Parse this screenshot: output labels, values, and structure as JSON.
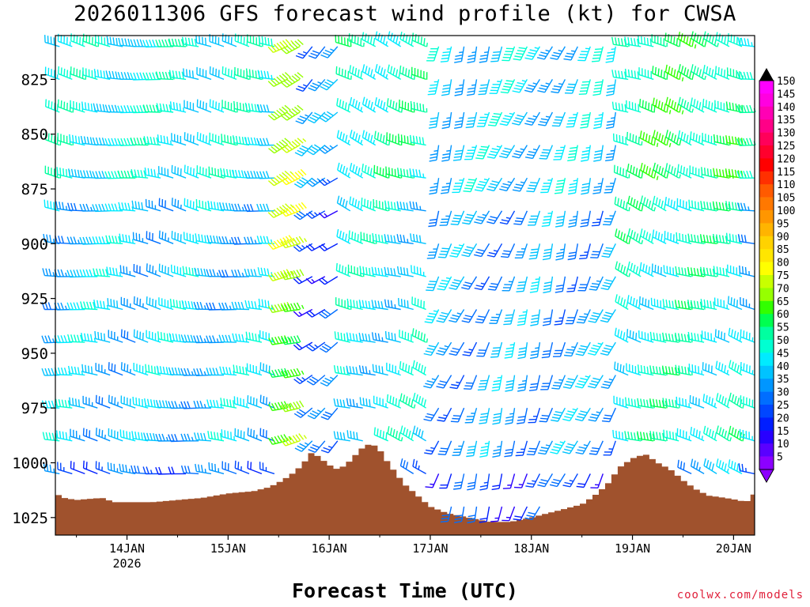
{
  "chart_data": {
    "type": "wind-barb-profile",
    "title": "2026011306 GFS forecast wind profile (kt) for CWSA",
    "xlabel": "Forecast Time (UTC)",
    "credit": "coolwx.com/models",
    "y_axis": {
      "unit": "hPa",
      "range": [
        1033,
        805
      ],
      "ticks": [
        825,
        850,
        875,
        900,
        925,
        950,
        975,
        1000,
        1025
      ],
      "levels": [
        810,
        825,
        840,
        855,
        870,
        885,
        900,
        915,
        930,
        945,
        960,
        975,
        990,
        1005,
        1020
      ]
    },
    "x_axis": {
      "unit": "hours since 2026-01-13 00Z",
      "range": [
        7,
        173
      ],
      "ticks": [
        {
          "label": "14JAN",
          "sublabel": "2026",
          "hour": 24
        },
        {
          "label": "15JAN",
          "sublabel": "",
          "hour": 48
        },
        {
          "label": "16JAN",
          "sublabel": "",
          "hour": 72
        },
        {
          "label": "17JAN",
          "sublabel": "",
          "hour": 96
        },
        {
          "label": "18JAN",
          "sublabel": "",
          "hour": 120
        },
        {
          "label": "19JAN",
          "sublabel": "",
          "hour": 144
        },
        {
          "label": "20JAN",
          "sublabel": "",
          "hour": 168
        }
      ],
      "step_hours": 3
    },
    "colorbar": {
      "labels": [
        "150",
        "145",
        "140",
        "135",
        "130",
        "125",
        "120",
        "115",
        "110",
        "105",
        "100",
        "95",
        "90",
        "85",
        "80",
        "75",
        "70",
        "65",
        "60",
        "55",
        "50",
        "45",
        "40",
        "35",
        "30",
        "25",
        "20",
        "15",
        "10",
        "5"
      ],
      "colors": [
        "#ff00ff",
        "#ff00e0",
        "#ff00b4",
        "#ff0087",
        "#ff005a",
        "#ff002d",
        "#ff0000",
        "#ff3000",
        "#ff5a00",
        "#ff7800",
        "#ff9600",
        "#ffb400",
        "#ffd200",
        "#ffe600",
        "#ffff00",
        "#c8ff00",
        "#96ff00",
        "#32ff00",
        "#00ff50",
        "#00ffa0",
        "#00ffd2",
        "#00ebff",
        "#00c3ff",
        "#0096ff",
        "#006eff",
        "#0046ff",
        "#001eff",
        "#2800ff",
        "#5a00ff",
        "#8c00ff"
      ]
    },
    "surface_pressure": [
      {
        "hour": 7,
        "value": 1014
      },
      {
        "hour": 9,
        "value": 1016
      },
      {
        "hour": 12,
        "value": 1017
      },
      {
        "hour": 18,
        "value": 1016
      },
      {
        "hour": 21,
        "value": 1018
      },
      {
        "hour": 30,
        "value": 1018
      },
      {
        "hour": 36,
        "value": 1017
      },
      {
        "hour": 42,
        "value": 1016
      },
      {
        "hour": 48,
        "value": 1014
      },
      {
        "hour": 54,
        "value": 1013
      },
      {
        "hour": 58,
        "value": 1011
      },
      {
        "hour": 61,
        "value": 1008
      },
      {
        "hour": 64,
        "value": 1004
      },
      {
        "hour": 66,
        "value": 1000
      },
      {
        "hour": 68,
        "value": 995
      },
      {
        "hour": 70,
        "value": 998
      },
      {
        "hour": 72,
        "value": 1001
      },
      {
        "hour": 74,
        "value": 1003
      },
      {
        "hour": 76,
        "value": 1001
      },
      {
        "hour": 78,
        "value": 997
      },
      {
        "hour": 80,
        "value": 993
      },
      {
        "hour": 82,
        "value": 991
      },
      {
        "hour": 84,
        "value": 994
      },
      {
        "hour": 86,
        "value": 1000
      },
      {
        "hour": 88,
        "value": 1005
      },
      {
        "hour": 90,
        "value": 1010
      },
      {
        "hour": 93,
        "value": 1015
      },
      {
        "hour": 96,
        "value": 1020
      },
      {
        "hour": 100,
        "value": 1023
      },
      {
        "hour": 105,
        "value": 1025
      },
      {
        "hour": 110,
        "value": 1027
      },
      {
        "hour": 115,
        "value": 1027
      },
      {
        "hour": 120,
        "value": 1025
      },
      {
        "hour": 126,
        "value": 1022
      },
      {
        "hour": 132,
        "value": 1019
      },
      {
        "hour": 135,
        "value": 1015
      },
      {
        "hour": 138,
        "value": 1010
      },
      {
        "hour": 141,
        "value": 1002
      },
      {
        "hour": 144,
        "value": 998
      },
      {
        "hour": 147,
        "value": 996
      },
      {
        "hour": 150,
        "value": 1000
      },
      {
        "hour": 153,
        "value": 1003
      },
      {
        "hour": 156,
        "value": 1008
      },
      {
        "hour": 159,
        "value": 1012
      },
      {
        "hour": 162,
        "value": 1015
      },
      {
        "hour": 166,
        "value": 1016
      },
      {
        "hour": 169,
        "value": 1017
      },
      {
        "hour": 171,
        "value": 1018
      },
      {
        "hour": 173,
        "value": 1014
      }
    ],
    "wind_regimes": [
      {
        "from": 7,
        "to": 62,
        "direction_deg": 280,
        "speed_kt": 40
      },
      {
        "from": 62,
        "to": 68,
        "direction_deg": 250,
        "speed_kt": 70
      },
      {
        "from": 68,
        "to": 77,
        "direction_deg": 230,
        "speed_kt": 25
      },
      {
        "from": 77,
        "to": 96,
        "direction_deg": 290,
        "speed_kt": 45
      },
      {
        "from": 96,
        "to": 143,
        "direction_deg": 200,
        "speed_kt": 35
      },
      {
        "from": 143,
        "to": 173,
        "direction_deg": 290,
        "speed_kt": 50
      }
    ]
  }
}
